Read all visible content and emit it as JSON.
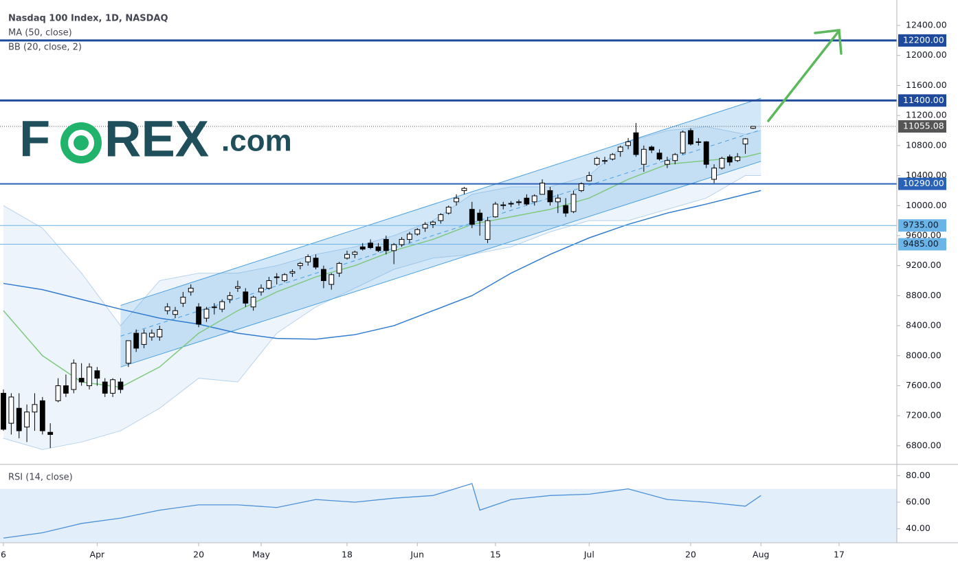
{
  "logo": {
    "left": "F",
    "right": "REX",
    "suffix": ".com"
  },
  "chart_data": [
    {
      "type": "candlestick",
      "title": "Nasdaq 100 Index, 1D, NASDAQ",
      "indicators": [
        "MA (50, close)",
        "BB (20, close, 2)"
      ],
      "xlim": [
        -0.44,
        114.4
      ],
      "ylim": [
        6552,
        12739
      ],
      "xticks": [
        {
          "value": 0,
          "label": "6"
        },
        {
          "value": 12,
          "label": "Apr"
        },
        {
          "value": 25,
          "label": "20"
        },
        {
          "value": 33,
          "label": "May"
        },
        {
          "value": 44,
          "label": "18"
        },
        {
          "value": 53,
          "label": "Jun"
        },
        {
          "value": 63,
          "label": "15"
        },
        {
          "value": 75,
          "label": "Jul"
        },
        {
          "value": 88,
          "label": "20"
        },
        {
          "value": 97,
          "label": "Aug"
        },
        {
          "value": 107,
          "label": "17"
        }
      ],
      "yticks": [
        {
          "value": 6800,
          "label": "6800.00"
        },
        {
          "value": 7200,
          "label": "7200.00"
        },
        {
          "value": 7600,
          "label": "7600.00"
        },
        {
          "value": 8000,
          "label": "8000.00"
        },
        {
          "value": 8400,
          "label": "8400.00"
        },
        {
          "value": 8800,
          "label": "8800.00"
        },
        {
          "value": 9200,
          "label": "9200.00"
        },
        {
          "value": 9600,
          "label": "9600.00"
        },
        {
          "value": 10000,
          "label": "10000.00"
        },
        {
          "value": 10400,
          "label": "10400.00"
        },
        {
          "value": 10800,
          "label": "10800.00"
        },
        {
          "value": 11200,
          "label": "11200.00"
        },
        {
          "value": 11600,
          "label": "11600.00"
        },
        {
          "value": 12000,
          "label": "12000.00"
        },
        {
          "value": 12400,
          "label": "12400.00"
        }
      ],
      "up_color": "#ffffff",
      "down_color": "#000000",
      "candles": [
        [
          7500,
          7550,
          7000,
          7020
        ],
        [
          7100,
          7500,
          6950,
          7450
        ],
        [
          7300,
          7500,
          6900,
          7000
        ],
        [
          7050,
          7350,
          6850,
          7250
        ],
        [
          7250,
          7500,
          7000,
          7350
        ],
        [
          7400,
          7450,
          6950,
          7000
        ],
        [
          6980,
          7100,
          6770,
          6950
        ],
        [
          7400,
          7700,
          7380,
          7600
        ],
        [
          7600,
          7750,
          7450,
          7500
        ],
        [
          7550,
          7950,
          7500,
          7900
        ],
        [
          7700,
          7900,
          7600,
          7650
        ],
        [
          7600,
          7900,
          7550,
          7850
        ],
        [
          7800,
          7850,
          7600,
          7700
        ],
        [
          7650,
          7700,
          7450,
          7500
        ],
        [
          7500,
          7700,
          7450,
          7680
        ],
        [
          7650,
          7700,
          7500,
          7550
        ],
        [
          7900,
          8200,
          7850,
          8200
        ],
        [
          8300,
          8350,
          8050,
          8100
        ],
        [
          8150,
          8350,
          8100,
          8300
        ],
        [
          8250,
          8350,
          8200,
          8300
        ],
        [
          8250,
          8400,
          8200,
          8350
        ],
        [
          8600,
          8700,
          8550,
          8650
        ],
        [
          8550,
          8650,
          8500,
          8600
        ],
        [
          8700,
          8850,
          8650,
          8780
        ],
        [
          8850,
          8950,
          8800,
          8900
        ],
        [
          8650,
          8700,
          8380,
          8420
        ],
        [
          8500,
          8650,
          8450,
          8620
        ],
        [
          8650,
          8700,
          8550,
          8650
        ],
        [
          8620,
          8750,
          8580,
          8720
        ],
        [
          8750,
          8850,
          8700,
          8800
        ],
        [
          8900,
          9000,
          8850,
          8920
        ],
        [
          8850,
          8900,
          8650,
          8700
        ],
        [
          8650,
          8800,
          8600,
          8780
        ],
        [
          8850,
          8950,
          8800,
          8900
        ],
        [
          8900,
          9050,
          8880,
          9000
        ],
        [
          9050,
          9100,
          8950,
          9050
        ],
        [
          9000,
          9100,
          8980,
          9080
        ],
        [
          9100,
          9150,
          9050,
          9120
        ],
        [
          9200,
          9250,
          9150,
          9230
        ],
        [
          9250,
          9350,
          9200,
          9320
        ],
        [
          9300,
          9350,
          9150,
          9180
        ],
        [
          9150,
          9200,
          8900,
          9000
        ],
        [
          8950,
          9100,
          8880,
          9080
        ],
        [
          9100,
          9250,
          9050,
          9230
        ],
        [
          9300,
          9400,
          9280,
          9350
        ],
        [
          9350,
          9400,
          9300,
          9380
        ],
        [
          9450,
          9500,
          9400,
          9420
        ],
        [
          9500,
          9550,
          9420,
          9440
        ],
        [
          9450,
          9500,
          9380,
          9400
        ],
        [
          9550,
          9600,
          9350,
          9400
        ],
        [
          9400,
          9500,
          9220,
          9480
        ],
        [
          9480,
          9580,
          9450,
          9550
        ],
        [
          9550,
          9650,
          9500,
          9620
        ],
        [
          9620,
          9700,
          9600,
          9680
        ],
        [
          9700,
          9780,
          9650,
          9750
        ],
        [
          9750,
          9800,
          9700,
          9780
        ],
        [
          9800,
          9900,
          9760,
          9880
        ],
        [
          9900,
          10000,
          9880,
          9980
        ],
        [
          10050,
          10150,
          10000,
          10100
        ],
        [
          10200,
          10250,
          10150,
          10230
        ],
        [
          9950,
          10050,
          9700,
          9750
        ],
        [
          9900,
          9950,
          9600,
          9800
        ],
        [
          9550,
          9850,
          9500,
          9800
        ],
        [
          9850,
          10050,
          9840,
          10020
        ],
        [
          10000,
          10050,
          9950,
          10010
        ],
        [
          10030,
          10060,
          9980,
          10020
        ],
        [
          10050,
          10080,
          10000,
          10040
        ],
        [
          10100,
          10150,
          10000,
          10020
        ],
        [
          10050,
          10150,
          10000,
          10130
        ],
        [
          10150,
          10350,
          10150,
          10300
        ],
        [
          10200,
          10250,
          10000,
          10050
        ],
        [
          10050,
          10150,
          9900,
          10100
        ],
        [
          10000,
          10100,
          9850,
          9900
        ],
        [
          9920,
          10200,
          9900,
          10150
        ],
        [
          10200,
          10310,
          10180,
          10290
        ],
        [
          10330,
          10450,
          10320,
          10400
        ],
        [
          10550,
          10650,
          10530,
          10630
        ],
        [
          10600,
          10650,
          10550,
          10600
        ],
        [
          10620,
          10700,
          10600,
          10680
        ],
        [
          10720,
          10800,
          10650,
          10780
        ],
        [
          10800,
          10900,
          10750,
          10850
        ],
        [
          10970,
          11100,
          10650,
          10680
        ],
        [
          10550,
          10800,
          10450,
          10750
        ],
        [
          10780,
          10800,
          10700,
          10740
        ],
        [
          10700,
          10750,
          10600,
          10620
        ],
        [
          10550,
          10650,
          10500,
          10600
        ],
        [
          10600,
          10700,
          10550,
          10680
        ],
        [
          10700,
          11000,
          10680,
          10980
        ],
        [
          11000,
          11030,
          10800,
          10820
        ],
        [
          10850,
          10900,
          10800,
          10850
        ],
        [
          10850,
          10860,
          10500,
          10550
        ],
        [
          10350,
          10550,
          10300,
          10500
        ],
        [
          10500,
          10650,
          10480,
          10630
        ],
        [
          10650,
          10680,
          10530,
          10580
        ],
        [
          10600,
          10700,
          10580,
          10650
        ],
        [
          10820,
          10900,
          10690,
          10890
        ],
        [
          11030,
          11060,
          11020,
          11055.08
        ]
      ],
      "series": [
        {
          "name": "MA",
          "color": "#2f7bd0",
          "x": [
            0,
            5,
            10,
            15,
            20,
            25,
            30,
            35,
            40,
            45,
            50,
            55,
            60,
            65,
            70,
            75,
            80,
            85,
            90,
            95,
            97
          ],
          "values": [
            8963,
            8880,
            8750,
            8620,
            8500,
            8420,
            8300,
            8230,
            8220,
            8280,
            8400,
            8600,
            8800,
            9100,
            9350,
            9570,
            9750,
            9900,
            10020,
            10150,
            10200
          ]
        },
        {
          "name": "BB basis",
          "color": "#7fc97f",
          "x": [
            0,
            5,
            10,
            15,
            20,
            25,
            30,
            35,
            40,
            45,
            50,
            55,
            60,
            65,
            70,
            75,
            80,
            85,
            90,
            95,
            97
          ],
          "values": [
            8600,
            8000,
            7650,
            7580,
            7850,
            8300,
            8600,
            8850,
            9050,
            9200,
            9400,
            9550,
            9750,
            9850,
            9950,
            10100,
            10350,
            10550,
            10600,
            10650,
            10700
          ]
        }
      ],
      "bands": {
        "color": "#dbeaf8",
        "x": [
          0,
          5,
          10,
          15,
          20,
          25,
          30,
          35,
          40,
          45,
          50,
          55,
          60,
          65,
          70,
          75,
          80,
          85,
          90,
          95,
          97
        ],
        "upper": [
          10000,
          9700,
          9100,
          8400,
          9000,
          9100,
          9100,
          9200,
          9350,
          9450,
          9600,
          9800,
          10150,
          10250,
          10250,
          10400,
          10850,
          11000,
          11050,
          10950,
          11000
        ],
        "lower": [
          6900,
          6750,
          6850,
          7000,
          7300,
          7700,
          7650,
          8300,
          8650,
          8900,
          9150,
          9300,
          9350,
          9450,
          9650,
          9800,
          9800,
          9950,
          10100,
          10400,
          10400
        ]
      },
      "channel": {
        "color": "#4a9fe0",
        "x": [
          15,
          97
        ],
        "upper": [
          8670,
          11430
        ],
        "lower": [
          7850,
          10590
        ]
      },
      "levels": [
        {
          "value": 12200,
          "label": "12200.00",
          "color": "#1f4a9c",
          "text_color": "#ffffff",
          "width": 3
        },
        {
          "value": 11400,
          "label": "11400.00",
          "color": "#1f4a9c",
          "text_color": "#ffffff",
          "width": 3
        },
        {
          "value": 10290,
          "label": "10290.00",
          "color": "#2a62b8",
          "text_color": "#ffffff",
          "width": 2
        },
        {
          "value": 9735,
          "label": "9735.00",
          "color": "#6ab4e8",
          "text_color": "#131722",
          "width": 1
        },
        {
          "value": 9485,
          "label": "9485.00",
          "color": "#6ab4e8",
          "text_color": "#131722",
          "width": 1
        }
      ],
      "last": {
        "value": 11055.08,
        "label": "11055.08",
        "color": "#555555"
      }
    },
    {
      "type": "line",
      "title": "RSI (14, close)",
      "ylim": [
        29.5,
        87.4
      ],
      "yticks": [
        {
          "value": 40,
          "label": "40.00"
        },
        {
          "value": 60,
          "label": "60.00"
        },
        {
          "value": 80,
          "label": "80.00"
        }
      ],
      "band": [
        30,
        70
      ],
      "band_color": "#dbeaf8",
      "series": [
        {
          "name": "RSI",
          "color": "#4a90d9",
          "x": [
            0,
            5,
            10,
            15,
            20,
            25,
            30,
            35,
            40,
            45,
            50,
            55,
            60,
            61,
            65,
            70,
            75,
            80,
            85,
            90,
            95,
            97
          ],
          "values": [
            33,
            37,
            44,
            48,
            54,
            58,
            58,
            56,
            62,
            60,
            63,
            65,
            74,
            54,
            62,
            65,
            66,
            70,
            62,
            60,
            57,
            65
          ]
        }
      ]
    }
  ]
}
